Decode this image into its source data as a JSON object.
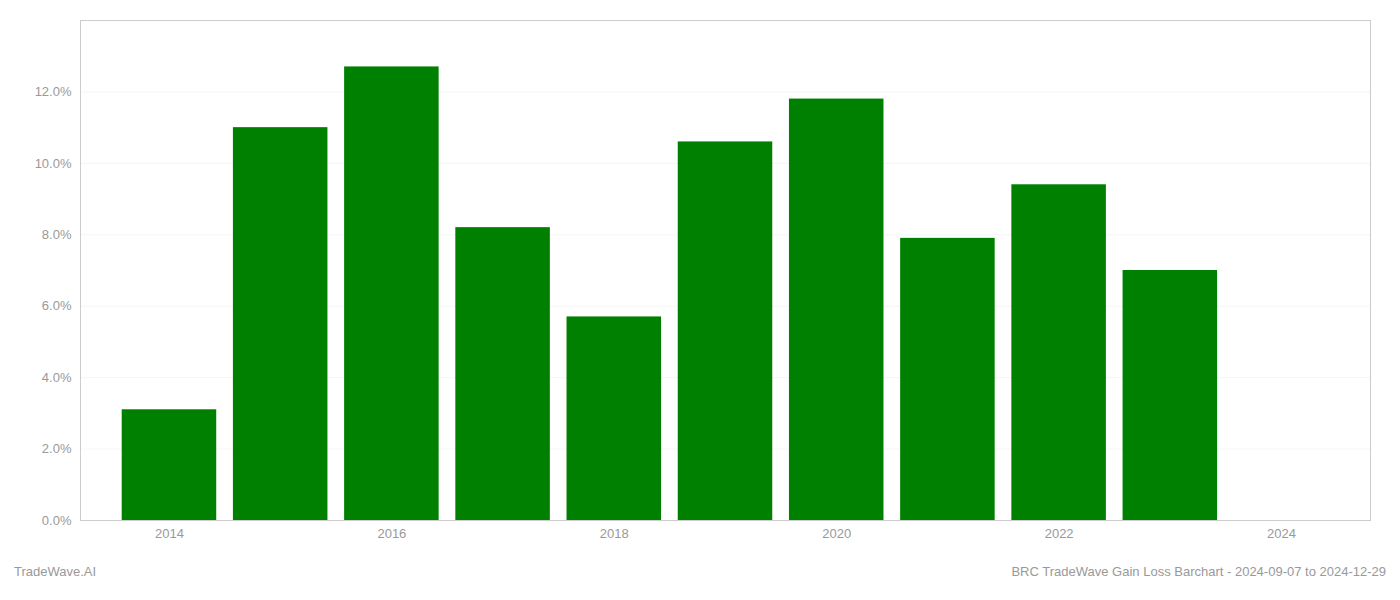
{
  "chart_data": {
    "type": "bar",
    "x": [
      2014,
      2015,
      2016,
      2017,
      2018,
      2019,
      2020,
      2021,
      2022,
      2023
    ],
    "values": [
      0.031,
      0.11,
      0.127,
      0.082,
      0.057,
      0.106,
      0.118,
      0.079,
      0.094,
      0.07
    ],
    "color": "#008000",
    "xlim": [
      2013.2,
      2024.8
    ],
    "xticks": [
      2014,
      2016,
      2018,
      2020,
      2022,
      2024
    ],
    "ylim": [
      0,
      0.14
    ],
    "yticks": [
      {
        "value": 0.0,
        "label": "0.0%"
      },
      {
        "value": 0.02,
        "label": "2.0%"
      },
      {
        "value": 0.04,
        "label": "4.0%"
      },
      {
        "value": 0.06,
        "label": "6.0%"
      },
      {
        "value": 0.08,
        "label": "8.0%"
      },
      {
        "value": 0.1,
        "label": "10.0%"
      },
      {
        "value": 0.12,
        "label": "12.0%"
      }
    ],
    "grid": true,
    "annotations": [
      "TradeWave.AI",
      "BRC TradeWave Gain Loss Barchart - 2024-09-07 to 2024-12-29"
    ]
  }
}
